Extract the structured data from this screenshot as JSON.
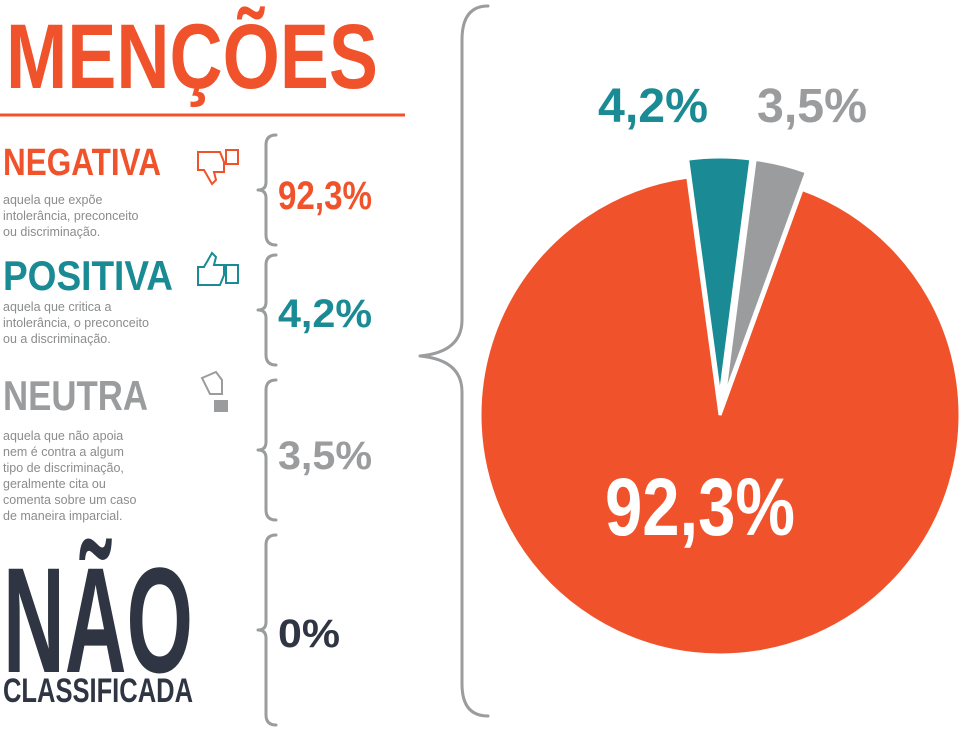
{
  "chart_data": {
    "type": "pie",
    "title": "MENÇÕES",
    "categories": [
      "NEGATIVA",
      "POSITIVA",
      "NEUTRA",
      "NÃO"
    ],
    "unclassified_subtitle": "CLASSIFICADA",
    "descriptions": [
      [
        "aquela que expõe",
        "intolerância, preconceito",
        "ou discriminação."
      ],
      [
        "aquela que critica a",
        "intolerância, o preconceito",
        "ou a discriminação."
      ],
      [
        "aquela que não apoia",
        "nem é contra a algum",
        "tipo de discriminação,",
        "geralmente cita ou",
        "comenta sobre um caso",
        "de maneira imparcial."
      ]
    ],
    "values": [
      92.3,
      4.2,
      3.5,
      0
    ],
    "value_labels": [
      "92,3%",
      "4,2%",
      "3,5%",
      "0%"
    ],
    "colors": [
      "#f0532b",
      "#1a8a94",
      "#9a9c9e",
      "#2f3542"
    ]
  }
}
